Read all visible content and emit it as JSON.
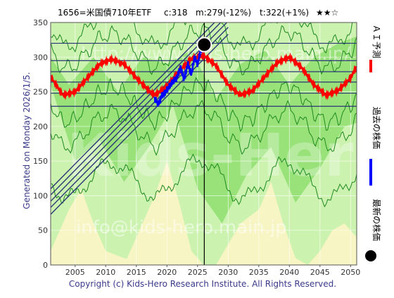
{
  "header": {
    "code_name": "1656=米国債710年ETF",
    "current": "c:318",
    "mid": "m:279(-12%)",
    "target": "t:322(+1%)",
    "stars": "★★☆"
  },
  "side_label": "Generated on Monday 2026/1/5.",
  "footer": "Copyright (c) Kids-Hero Research Institute. All Rights Reserved.",
  "watermark": {
    "url": "http://www.kids-hero.main.jp/",
    "email": "info@kids-hero.main.jp",
    "brand": "Kids-Hero"
  },
  "legend": {
    "ai_forecast": "ＡＩ予測",
    "past_price": "過去の株価",
    "latest_price": "最新の株価"
  },
  "colors": {
    "ai_forecast": "#ff0000",
    "past_price": "#0000ff",
    "latest_price": "#000000",
    "channel_lines": "#2a3575",
    "band_light_green": "#ccf2b0",
    "band_green": "#99e27a",
    "band_yellow": "#f7f5c3",
    "outline_green": "#1f8a1f",
    "axis_text": "#333333"
  },
  "chart_data": {
    "type": "line",
    "xlim": [
      2001,
      2051
    ],
    "ylim": [
      0,
      350
    ],
    "x_ticks": [
      2005,
      2010,
      2015,
      2020,
      2025,
      2030,
      2035,
      2040,
      2045,
      2050
    ],
    "y_ticks": [
      0,
      50,
      100,
      150,
      200,
      250,
      300,
      350
    ],
    "grid": true,
    "current_year": 2026.1,
    "latest_point": {
      "x": 2026.1,
      "y": 318
    },
    "horizontal_levels": [
      320,
      295,
      279,
      264,
      248,
      229
    ],
    "channel_lines": [
      {
        "x": [
          2001,
          2030
        ],
        "y": [
          110,
          370
        ]
      },
      {
        "x": [
          2001,
          2030
        ],
        "y": [
          101,
          361
        ]
      },
      {
        "x": [
          2001,
          2030
        ],
        "y": [
          92,
          352
        ]
      },
      {
        "x": [
          2001,
          2030
        ],
        "y": [
          83,
          343
        ]
      },
      {
        "x": [
          2001,
          2030
        ],
        "y": [
          73,
          333
        ]
      }
    ],
    "series": [
      {
        "name": "ＡＩ予測",
        "x": [
          2001,
          2003,
          2005,
          2007,
          2009,
          2011,
          2013,
          2015,
          2017,
          2018,
          2020,
          2022,
          2024,
          2026,
          2028,
          2030,
          2032,
          2034,
          2036,
          2038,
          2040,
          2042,
          2044,
          2046,
          2048,
          2050,
          2051
        ],
        "y": [
          272,
          245,
          250,
          270,
          290,
          297,
          290,
          270,
          252,
          245,
          258,
          280,
          298,
          302,
          288,
          260,
          245,
          252,
          272,
          292,
          300,
          285,
          260,
          245,
          252,
          270,
          287
        ]
      },
      {
        "name": "過去の株価",
        "x": [
          2018,
          2018.6,
          2019.2,
          2019.8,
          2020.4,
          2021,
          2021.6,
          2022.2,
          2022.8,
          2023.4,
          2024,
          2024.5,
          2025,
          2025.5,
          2026.1
        ],
        "y": [
          240,
          232,
          245,
          250,
          258,
          265,
          270,
          285,
          268,
          290,
          275,
          300,
          290,
          310,
          318
        ]
      }
    ]
  }
}
